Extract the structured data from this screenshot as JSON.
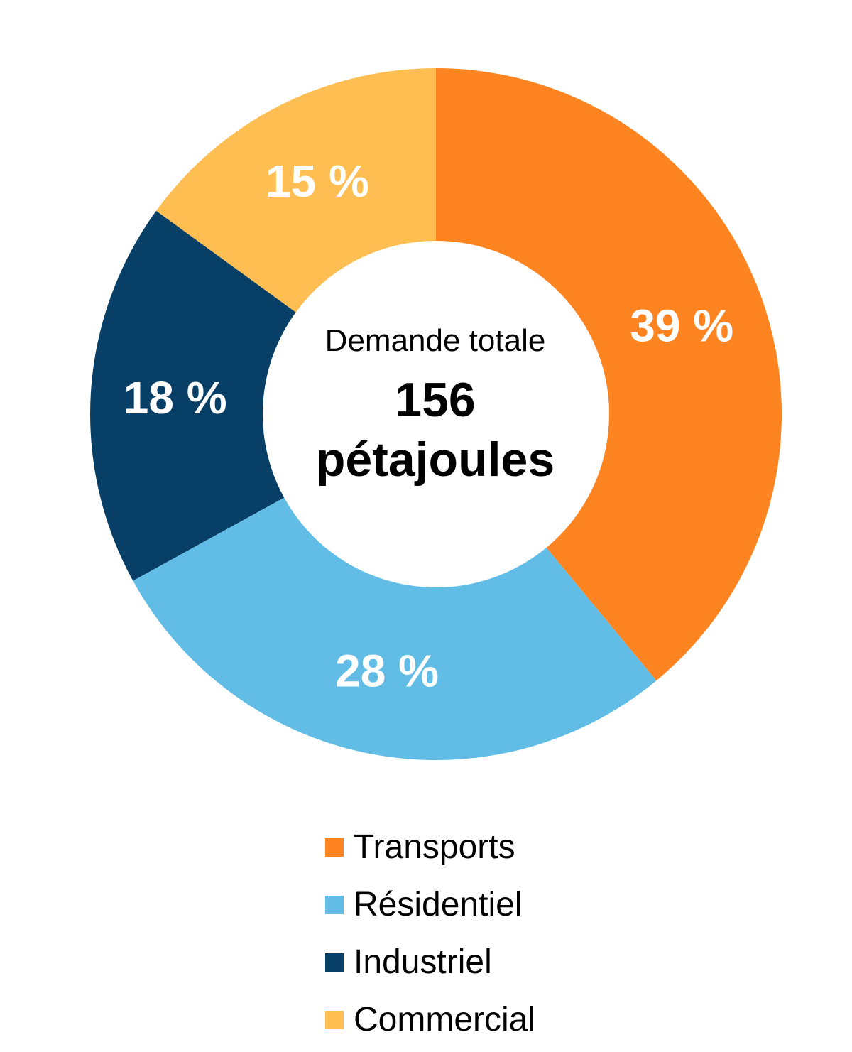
{
  "chart_data": {
    "type": "pie",
    "donut": true,
    "legend": "bottom",
    "center": {
      "caption": "Demande totale",
      "value": "156",
      "unit": "pétajoules"
    },
    "slices": [
      {
        "name": "Transports",
        "value": 39,
        "label": "39 %",
        "color": "#fd8420"
      },
      {
        "name": "Résidentiel",
        "value": 28,
        "label": "28 %",
        "color": "#61bde6"
      },
      {
        "name": "Industriel",
        "value": 18,
        "label": "18 %",
        "color": "#083f66"
      },
      {
        "name": "Commercial",
        "value": 15,
        "label": "15 %",
        "color": "#febe51"
      }
    ]
  }
}
